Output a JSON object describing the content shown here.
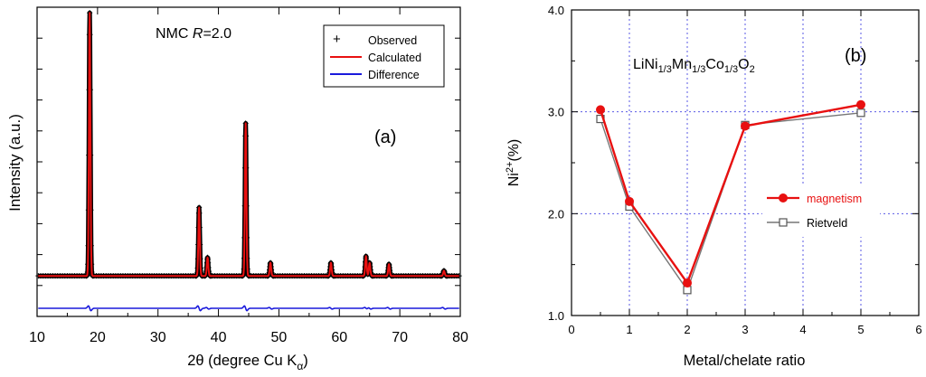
{
  "chart_data": [
    {
      "type": "line",
      "panel_label": "(a)",
      "title_prefix": "NMC ",
      "title_italic": "R",
      "title_suffix": "=2.0",
      "xlabel": "2θ (degree  Cu K",
      "xlabel_sub": "α",
      "xlabel_close": ")",
      "ylabel": "Intensity (a.u.)",
      "xlim": [
        10,
        80
      ],
      "xticks": [
        "10",
        "20",
        "30",
        "40",
        "50",
        "60",
        "70",
        "80"
      ],
      "legend": [
        "Observed",
        "Calculated",
        "Difference"
      ],
      "legend_markers": [
        "+",
        "",
        ""
      ],
      "colors": {
        "observed": "#000000",
        "calculated": "#e81010",
        "difference": "#1a1adc"
      },
      "baseline": 0.075,
      "peaks": [
        {
          "x": 18.7,
          "y": 1.0
        },
        {
          "x": 36.8,
          "y": 0.26
        },
        {
          "x": 38.2,
          "y": 0.07
        },
        {
          "x": 44.5,
          "y": 0.58
        },
        {
          "x": 48.6,
          "y": 0.05
        },
        {
          "x": 58.6,
          "y": 0.05
        },
        {
          "x": 64.4,
          "y": 0.075
        },
        {
          "x": 65.0,
          "y": 0.05
        },
        {
          "x": 68.2,
          "y": 0.045
        },
        {
          "x": 77.3,
          "y": 0.02
        }
      ]
    },
    {
      "type": "line",
      "panel_label": "(b)",
      "formula": [
        {
          "t": "LiNi",
          "s": ""
        },
        {
          "t": "1/3",
          "s": "sub"
        },
        {
          "t": "Mn",
          "s": ""
        },
        {
          "t": "1/3",
          "s": "sub"
        },
        {
          "t": "Co",
          "s": ""
        },
        {
          "t": "1/3",
          "s": "sub"
        },
        {
          "t": "O",
          "s": ""
        },
        {
          "t": "2",
          "s": "sub"
        }
      ],
      "xlabel": "Metal/chelate ratio",
      "ylabel_base": "Ni",
      "ylabel_sup": "2+",
      "ylabel_rest": "(%)",
      "xlim": [
        0,
        6
      ],
      "ylim": [
        1.0,
        4.0
      ],
      "xticks": [
        "0",
        "1",
        "2",
        "3",
        "4",
        "5",
        "6"
      ],
      "yticks": [
        "1.0",
        "2.0",
        "3.0",
        "4.0"
      ],
      "series": [
        {
          "name": "magnetism",
          "color": "#e81010",
          "marker": "filled-circle",
          "x": [
            0.5,
            1,
            2,
            3,
            5
          ],
          "y": [
            3.02,
            2.12,
            1.32,
            2.86,
            3.07
          ]
        },
        {
          "name": "Rietveld",
          "color": "#777777",
          "marker": "open-square",
          "x": [
            0.5,
            1,
            2,
            3,
            5
          ],
          "y": [
            2.93,
            2.07,
            1.25,
            2.87,
            2.99
          ]
        }
      ]
    }
  ]
}
